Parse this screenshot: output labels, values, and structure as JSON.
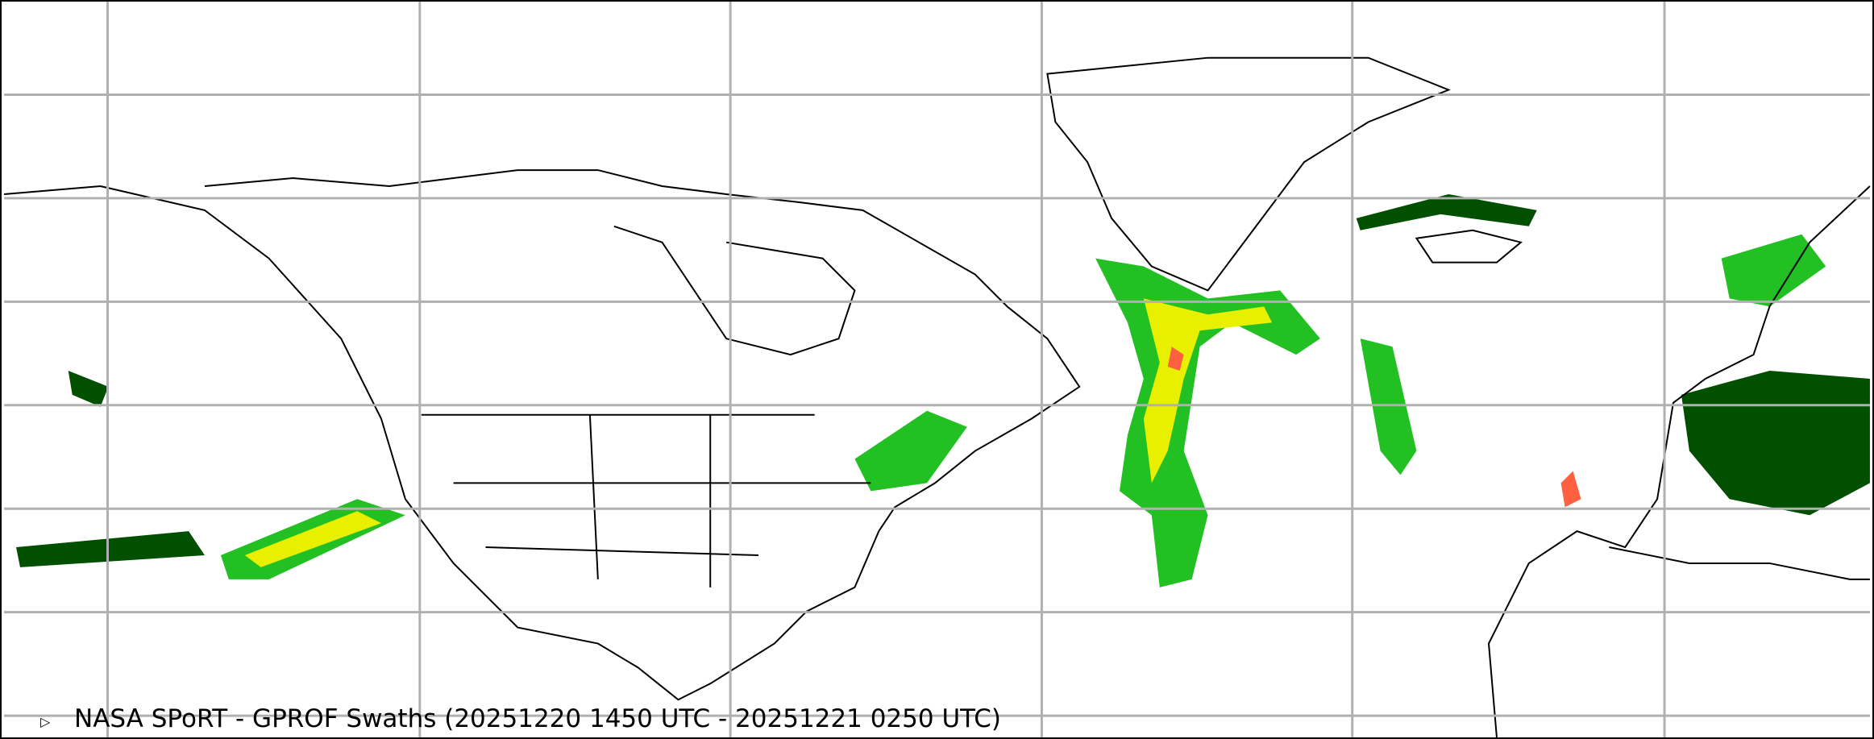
{
  "map": {
    "caption": "NASA SPoRT - GPROF Swaths (20251220 1450 UTC - 20251221 0250 UTC)",
    "legend_marker_icon": "triangle-right-outline-icon",
    "projection": "equirectangular",
    "gridlines": true,
    "colors": {
      "gridline": "#b0b0b0",
      "coastline": "#000000",
      "precip_light": "#005000",
      "precip_moderate": "#22c022",
      "precip_heavy": "#e8f000",
      "precip_intense": "#ff6040"
    }
  }
}
